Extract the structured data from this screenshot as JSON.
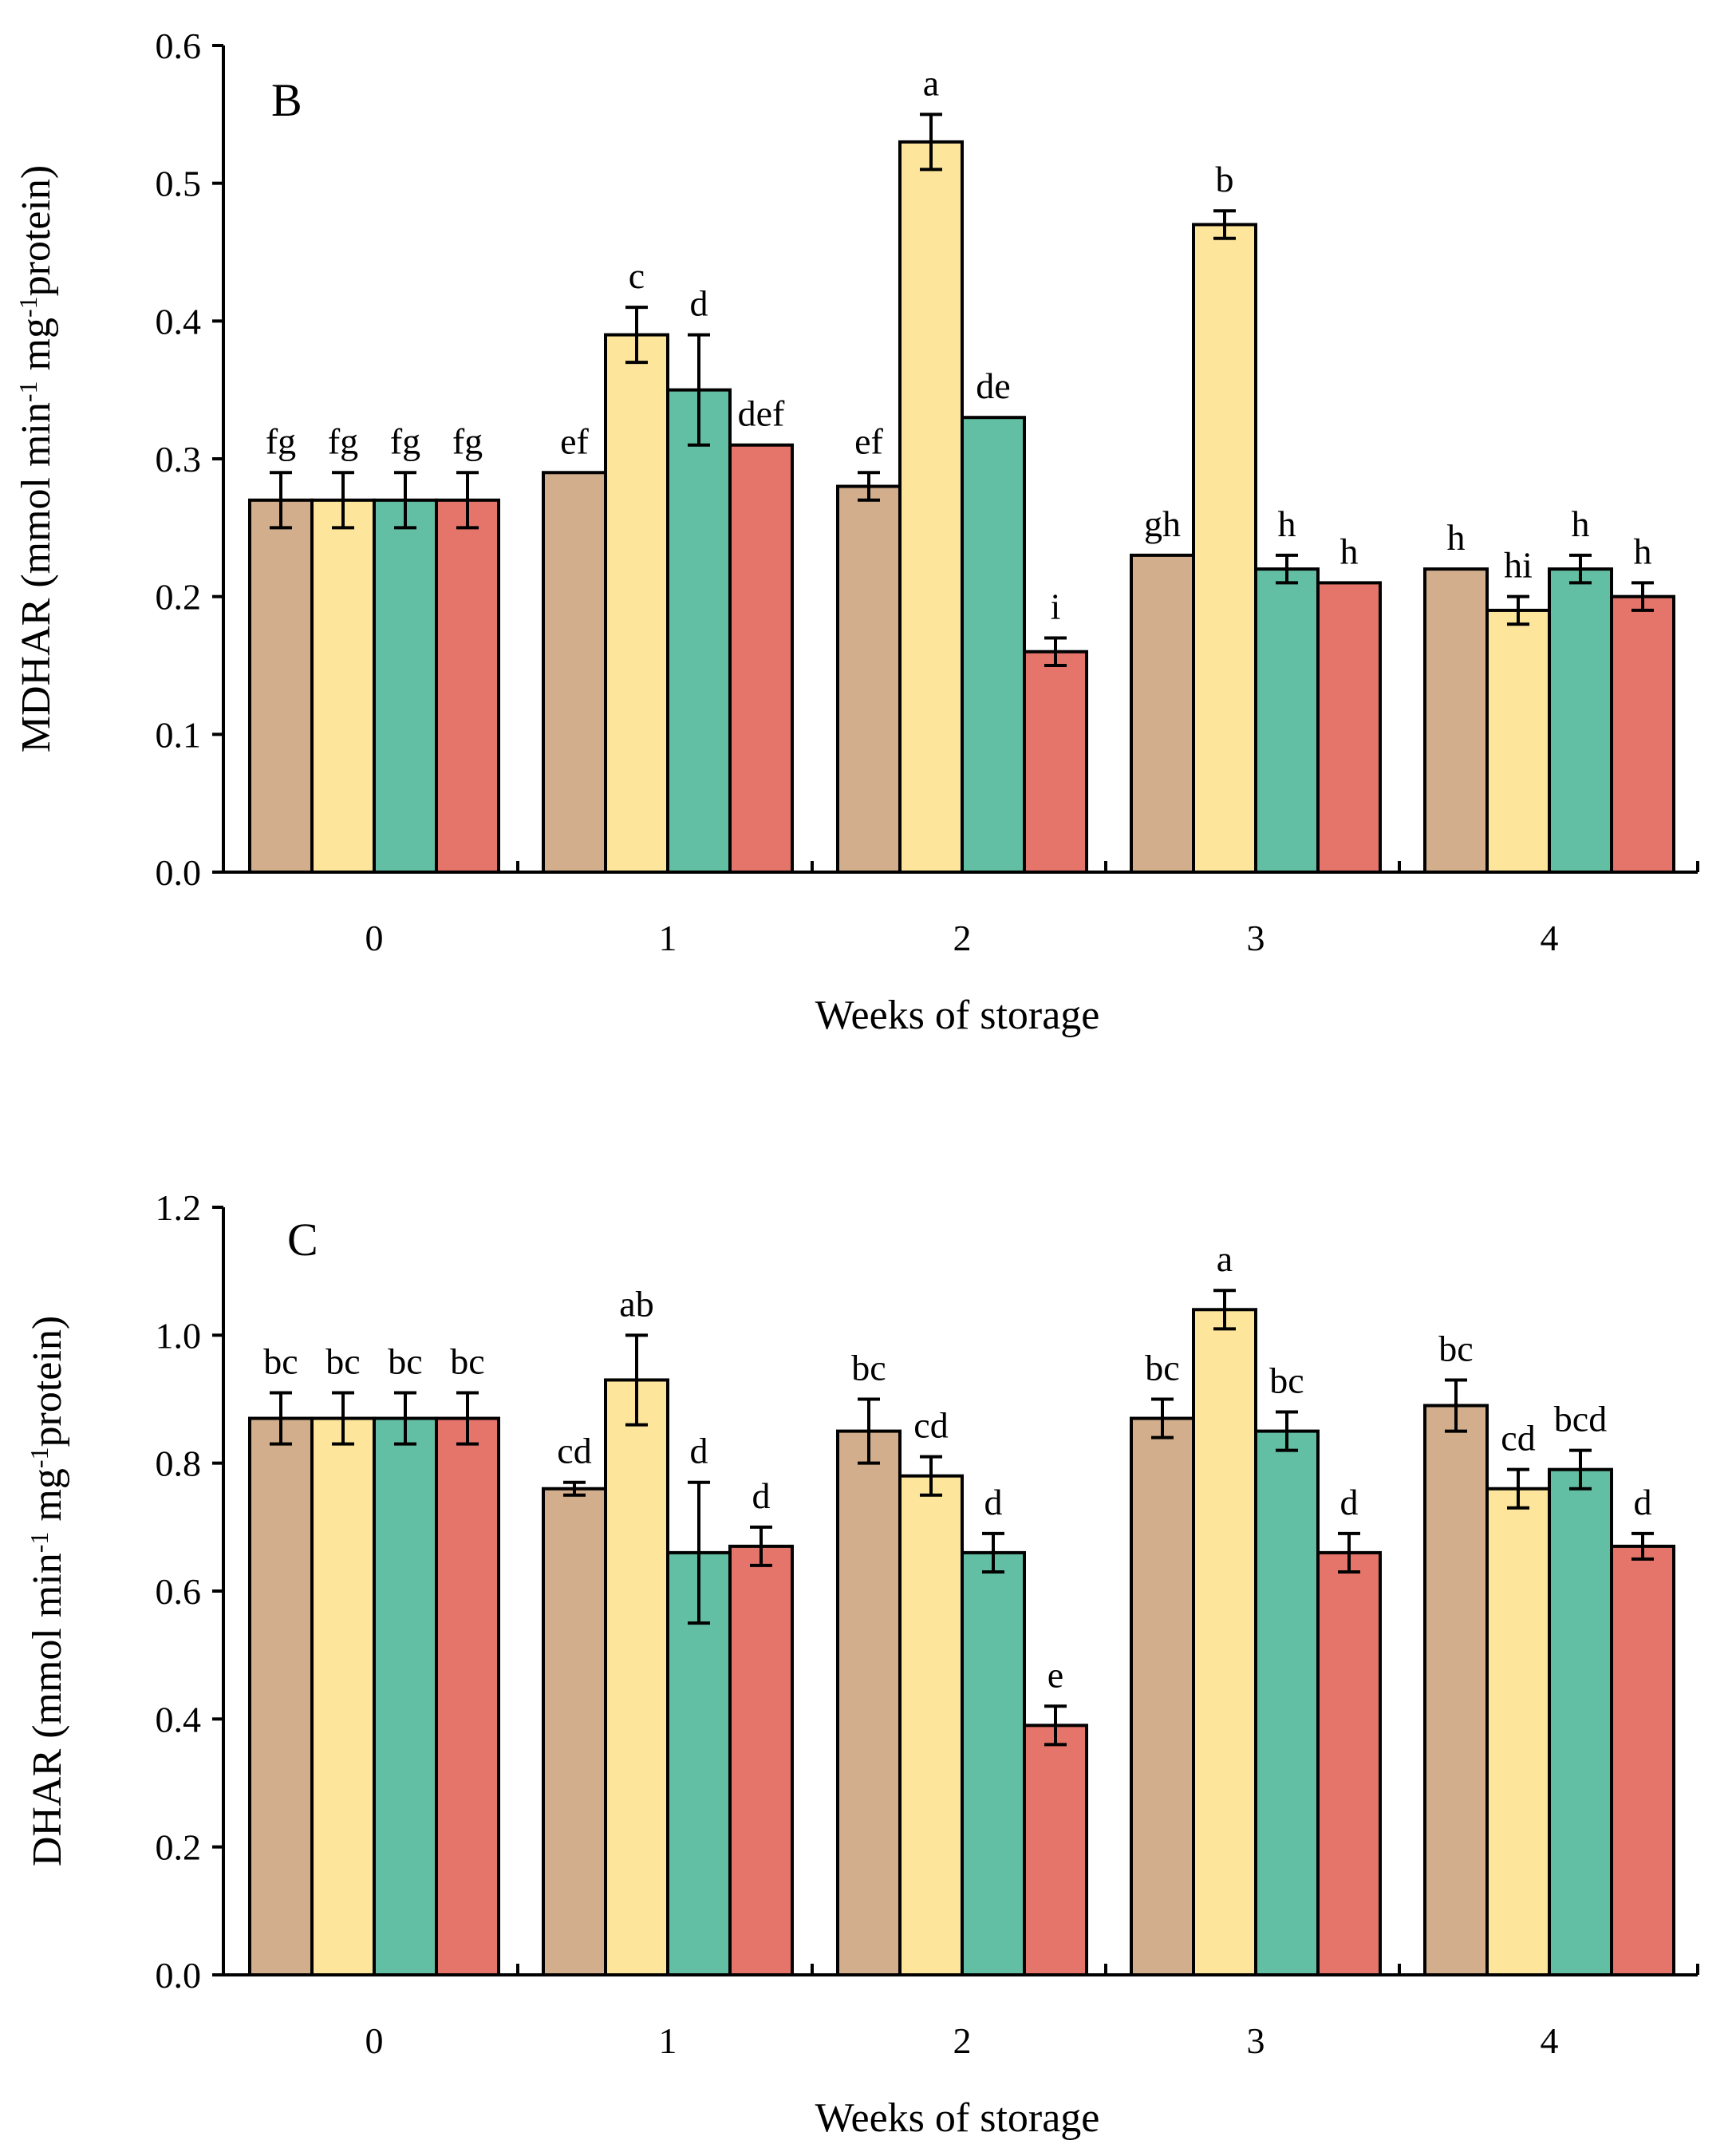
{
  "chart_data": [
    {
      "type": "bar",
      "panel_label": "B",
      "title": "",
      "xlabel": "Weeks of storage",
      "ylabel": "MDHAR (mmol min⁻¹ mg⁻¹protein)",
      "ylim": [
        0,
        0.6
      ],
      "yticks": [
        "0.0",
        "0.1",
        "0.2",
        "0.3",
        "0.4",
        "0.5",
        "0.6"
      ],
      "categories": [
        "0",
        "1",
        "2",
        "3",
        "4"
      ],
      "series": [
        {
          "name": "series-1",
          "color": "#d2ae8c",
          "values": [
            0.27,
            0.29,
            0.28,
            0.23,
            0.22
          ],
          "errors": [
            0.02,
            0,
            0.01,
            0,
            0
          ],
          "labels": [
            "fg",
            "ef",
            "ef",
            "gh",
            "h"
          ]
        },
        {
          "name": "series-2",
          "color": "#fde59b",
          "values": [
            0.27,
            0.39,
            0.53,
            0.47,
            0.19
          ],
          "errors": [
            0.02,
            0.02,
            0.02,
            0.01,
            0.01
          ],
          "labels": [
            "fg",
            "c",
            "a",
            "b",
            "hi"
          ]
        },
        {
          "name": "series-3",
          "color": "#63bfa3",
          "values": [
            0.27,
            0.35,
            0.33,
            0.22,
            0.22
          ],
          "errors": [
            0.02,
            0.04,
            0,
            0.01,
            0.01
          ],
          "labels": [
            "fg",
            "d",
            "de",
            "h",
            "h"
          ]
        },
        {
          "name": "series-4",
          "color": "#e5746a",
          "values": [
            0.27,
            0.31,
            0.16,
            0.21,
            0.2
          ],
          "errors": [
            0.02,
            0,
            0.01,
            0,
            0.01
          ],
          "labels": [
            "fg",
            "def",
            "i",
            "h",
            "h"
          ]
        }
      ]
    },
    {
      "type": "bar",
      "panel_label": "C",
      "title": "",
      "xlabel": "Weeks of storage",
      "ylabel": "DHAR (mmol min⁻¹ mg⁻¹protein)",
      "ylim": [
        0,
        1.2
      ],
      "yticks": [
        "0.0",
        "0.2",
        "0.4",
        "0.6",
        "0.8",
        "1.0",
        "1.2"
      ],
      "categories": [
        "0",
        "1",
        "2",
        "3",
        "4"
      ],
      "series": [
        {
          "name": "series-1",
          "color": "#d2ae8c",
          "values": [
            0.87,
            0.76,
            0.85,
            0.87,
            0.89
          ],
          "errors": [
            0.04,
            0.01,
            0.05,
            0.03,
            0.04
          ],
          "labels": [
            "bc",
            "cd",
            "bc",
            "bc",
            "bc"
          ]
        },
        {
          "name": "series-2",
          "color": "#fde59b",
          "values": [
            0.87,
            0.93,
            0.78,
            1.04,
            0.76
          ],
          "errors": [
            0.04,
            0.07,
            0.03,
            0.03,
            0.03
          ],
          "labels": [
            "bc",
            "ab",
            "cd",
            "a",
            "cd"
          ]
        },
        {
          "name": "series-3",
          "color": "#63bfa3",
          "values": [
            0.87,
            0.66,
            0.66,
            0.85,
            0.79
          ],
          "errors": [
            0.04,
            0.11,
            0.03,
            0.03,
            0.03
          ],
          "labels": [
            "bc",
            "d",
            "d",
            "bc",
            "bcd"
          ]
        },
        {
          "name": "series-4",
          "color": "#e5746a",
          "values": [
            0.87,
            0.67,
            0.39,
            0.66,
            0.67
          ],
          "errors": [
            0.04,
            0.03,
            0.03,
            0.03,
            0.02
          ],
          "labels": [
            "bc",
            "d",
            "e",
            "d",
            "d"
          ]
        }
      ]
    }
  ]
}
